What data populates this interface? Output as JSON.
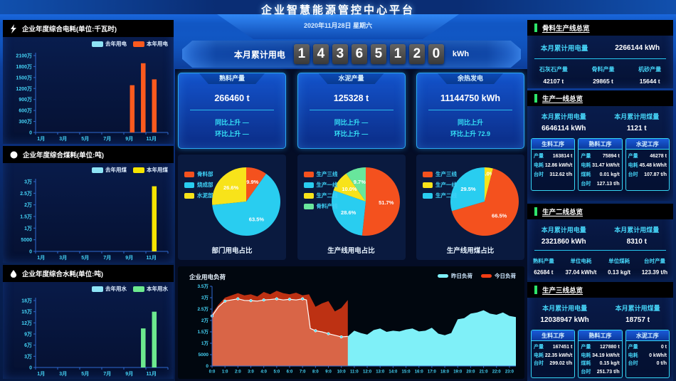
{
  "header": {
    "title": "企业智慧能源管控中心平台",
    "date": "2020年11月28日 星期六"
  },
  "counter": {
    "label": "本月累计用电",
    "digits": [
      "1",
      "4",
      "3",
      "6",
      "5",
      "1",
      "2",
      "0"
    ],
    "unit": "kWh"
  },
  "stat_cards": [
    {
      "title": "熟料产量",
      "value": "266460 t",
      "yoy": "同比上升 —",
      "mom": "环比上升 —"
    },
    {
      "title": "水泥产量",
      "value": "125328 t",
      "yoy": "同比上升 —",
      "mom": "环比上升 —"
    },
    {
      "title": "余热发电",
      "value": "11144750 kWh",
      "yoy": "同比上升",
      "mom": "环比上升 72.9"
    }
  ],
  "right_panels": {
    "aggregate": {
      "title": "骨料生产线总览",
      "total_label": "本月累计用电量",
      "total_value": "2266144 kWh",
      "stats": [
        {
          "label": "石灰石产量",
          "value": "42107 t"
        },
        {
          "label": "骨料产量",
          "value": "29865 t"
        },
        {
          "label": "机砂产量",
          "value": "15644 t"
        }
      ]
    },
    "line1": {
      "title": "生产一线总览",
      "elec_label": "本月累计用电量",
      "elec_value": "6646114 kWh",
      "coal_label": "本月累计用煤量",
      "coal_value": "1121 t",
      "procs": [
        {
          "title": "生料工序",
          "rows": [
            [
              "产量",
              "163814 t"
            ],
            [
              "电耗",
              "12.86 kWh/t"
            ],
            [
              "台时",
              "312.62 t/h"
            ]
          ]
        },
        {
          "title": "熟料工序",
          "rows": [
            [
              "产量",
              "75894 t"
            ],
            [
              "电耗",
              "31.47 kWh/t"
            ],
            [
              "煤耗",
              "0.01 kg/t"
            ],
            [
              "台时",
              "127.13 t/h"
            ]
          ]
        },
        {
          "title": "水泥工序",
          "rows": [
            [
              "产量",
              "46278 t"
            ],
            [
              "电耗",
              "45.48 kWh/t"
            ],
            [
              "台时",
              "107.87 t/h"
            ]
          ]
        }
      ]
    },
    "line2": {
      "title": "生产二线总览",
      "elec_label": "本月累计用电量",
      "elec_value": "2321860 kWh",
      "coal_label": "本月累计用煤量",
      "coal_value": "8310 t",
      "stats": [
        {
          "label": "熟料产量",
          "value": "62684 t"
        },
        {
          "label": "单位电耗",
          "value": "37.04 kWh/t"
        },
        {
          "label": "单位煤耗",
          "value": "0.13 kg/t"
        },
        {
          "label": "台时产量",
          "value": "123.39 t/h"
        }
      ]
    },
    "line3": {
      "title": "生产三线总览",
      "elec_label": "本月累计用电量",
      "elec_value": "12038947 kWh",
      "coal_label": "本月累计用煤量",
      "coal_value": "18757 t",
      "procs": [
        {
          "title": "生料工序",
          "rows": [
            [
              "产量",
              "167451 t"
            ],
            [
              "电耗",
              "22.35 kWh/t"
            ],
            [
              "台时",
              "299.02 t/h"
            ]
          ]
        },
        {
          "title": "熟料工序",
          "rows": [
            [
              "产量",
              "127880 t"
            ],
            [
              "电耗",
              "34.19 kWh/t"
            ],
            [
              "煤耗",
              "0.15 kg/t"
            ],
            [
              "台时",
              "251.73 t/h"
            ]
          ]
        },
        {
          "title": "水泥工序",
          "rows": [
            [
              "产量",
              "0 t"
            ],
            [
              "电耗",
              "0 kWh/t"
            ],
            [
              "台时",
              "0 t/h"
            ]
          ]
        }
      ]
    }
  },
  "chart_data": [
    {
      "id": "elec-year",
      "type": "bar",
      "title": "企业年度综合电耗(单位:千瓦时)",
      "categories": [
        "1月",
        "2月",
        "3月",
        "4月",
        "5月",
        "6月",
        "7月",
        "8月",
        "9月",
        "10月",
        "11月",
        "12月"
      ],
      "yticks": [
        "0",
        "300万",
        "600万",
        "900万",
        "1200万",
        "1500万",
        "1800万",
        "2100万"
      ],
      "ylim": [
        0,
        21000000
      ],
      "legend_position": "top-right",
      "grid": false,
      "series": [
        {
          "name": "去年用电",
          "color": "#8ee3f5",
          "values": [
            0,
            0,
            0,
            0,
            0,
            0,
            0,
            0,
            0,
            0,
            0,
            0
          ]
        },
        {
          "name": "本年用电",
          "color": "#fb5a1e",
          "values": [
            0,
            0,
            0,
            0,
            0,
            0,
            0,
            0,
            12900000,
            18900000,
            14500000,
            0
          ]
        }
      ]
    },
    {
      "id": "coal-year",
      "type": "bar",
      "title": "企业年度综合煤耗(单位:吨)",
      "categories": [
        "1月",
        "2月",
        "3月",
        "4月",
        "5月",
        "6月",
        "7月",
        "8月",
        "9月",
        "10月",
        "11月",
        "12月"
      ],
      "yticks": [
        "0",
        "5000",
        "1万",
        "1.5万",
        "2万",
        "2.5万",
        "3万"
      ],
      "ylim": [
        0,
        30000
      ],
      "legend_position": "top-right",
      "grid": false,
      "series": [
        {
          "name": "去年用煤",
          "color": "#8ee3f5",
          "values": [
            0,
            0,
            0,
            0,
            0,
            0,
            0,
            0,
            0,
            0,
            0,
            0
          ]
        },
        {
          "name": "本年用煤",
          "color": "#f6e400",
          "values": [
            0,
            0,
            0,
            0,
            0,
            0,
            0,
            0,
            0,
            0,
            28000,
            0
          ]
        }
      ]
    },
    {
      "id": "water-year",
      "type": "bar",
      "title": "企业年度综合水耗(单位:吨)",
      "categories": [
        "1月",
        "2月",
        "3月",
        "4月",
        "5月",
        "6月",
        "7月",
        "8月",
        "9月",
        "10月",
        "11月",
        "12月"
      ],
      "yticks": [
        "0",
        "3万",
        "6万",
        "9万",
        "12万",
        "15万",
        "18万"
      ],
      "ylim": [
        0,
        180000
      ],
      "legend_position": "top-right",
      "grid": false,
      "series": [
        {
          "name": "去年用水",
          "color": "#8ee3f5",
          "values": [
            0,
            0,
            0,
            0,
            0,
            0,
            0,
            0,
            0,
            0,
            0,
            0
          ]
        },
        {
          "name": "本年用水",
          "color": "#6ce98e",
          "values": [
            0,
            0,
            0,
            0,
            0,
            0,
            0,
            0,
            0,
            105000,
            150000,
            0
          ]
        }
      ]
    },
    {
      "id": "pie-dept",
      "type": "pie",
      "title": "部门用电占比",
      "legend_position": "top-left",
      "legend": [
        {
          "label": "骨料部",
          "color": "#f4511e"
        },
        {
          "label": "烧成部",
          "color": "#29cdf0"
        },
        {
          "label": "水泥部",
          "color": "#f8e31a"
        }
      ],
      "slices": [
        {
          "label": "骨料部",
          "value": 9.9,
          "pct": "9.9%",
          "color": "#f4511e"
        },
        {
          "label": "烧成部",
          "value": 63.5,
          "pct": "63.5%",
          "color": "#29cdf0"
        },
        {
          "label": "水泥部",
          "value": 26.6,
          "pct": "26.6%",
          "color": "#f8e31a"
        }
      ]
    },
    {
      "id": "pie-line-elec",
      "type": "pie",
      "title": "生产线用电占比",
      "legend_position": "top-left",
      "legend": [
        {
          "label": "生产三线",
          "color": "#f4511e"
        },
        {
          "label": "生产一线",
          "color": "#29cdf0"
        },
        {
          "label": "生产二线",
          "color": "#f8e31a"
        },
        {
          "label": "骨料产线",
          "color": "#68e69c"
        }
      ],
      "slices": [
        {
          "label": "生产三线",
          "value": 51.7,
          "pct": "51.7%",
          "color": "#f4511e"
        },
        {
          "label": "生产一线",
          "value": 28.6,
          "pct": "28.6%",
          "color": "#29cdf0"
        },
        {
          "label": "生产二线",
          "value": 10.0,
          "pct": "10.0%",
          "color": "#f8e31a"
        },
        {
          "label": "骨料产线",
          "value": 9.7,
          "pct": "9.7%",
          "color": "#68e69c"
        }
      ]
    },
    {
      "id": "pie-line-coal",
      "type": "pie",
      "title": "生产线用煤占比",
      "legend_position": "top-left",
      "legend": [
        {
          "label": "生产三线",
          "color": "#f4511e"
        },
        {
          "label": "生产一线",
          "color": "#f8e31a"
        },
        {
          "label": "生产二线",
          "color": "#29cdf0"
        }
      ],
      "slices": [
        {
          "label": "生产一线",
          "value": 4.0,
          "pct": "4.0%",
          "color": "#f8e31a"
        },
        {
          "label": "生产三线",
          "value": 66.5,
          "pct": "66.5%",
          "color": "#f4511e"
        },
        {
          "label": "生产二线",
          "value": 29.5,
          "pct": "29.5%",
          "color": "#29cdf0"
        }
      ]
    },
    {
      "id": "load",
      "type": "area",
      "title": "企业用电负荷",
      "legend_position": "top-right",
      "yticks": [
        "0",
        "5000",
        "1万",
        "1.5万",
        "2万",
        "2.5万",
        "3万",
        "3.5万"
      ],
      "ymax": 35000,
      "grid": false,
      "x_labels": [
        "0:0",
        "1:0",
        "2:0",
        "3:0",
        "4:0",
        "5:0",
        "6:0",
        "7:0",
        "8:0",
        "9:0",
        "10:0",
        "11:0",
        "12:0",
        "13:0",
        "14:0",
        "15:0",
        "16:0",
        "17:0",
        "18:0",
        "19:0",
        "20:0",
        "21:0",
        "22:0",
        "23:0"
      ],
      "legend": [
        {
          "label": "昨日负荷",
          "color": "#7ff0f8"
        },
        {
          "label": "今日负荷",
          "color": "#f23d14"
        }
      ],
      "series": [
        {
          "name": "昨日负荷",
          "color": "#7ff0f8",
          "opacity": 1,
          "line_until": 10.5,
          "points": [
            [
              0,
              22000
            ],
            [
              0.5,
              26000
            ],
            [
              1,
              28500
            ],
            [
              1.5,
              29000
            ],
            [
              2,
              29500
            ],
            [
              2.5,
              28800
            ],
            [
              3,
              28700
            ],
            [
              3.5,
              28500
            ],
            [
              4,
              29000
            ],
            [
              4.5,
              29200
            ],
            [
              5,
              29500
            ],
            [
              5.5,
              29000
            ],
            [
              6,
              29300
            ],
            [
              6.5,
              29000
            ],
            [
              7,
              29500
            ],
            [
              7.3,
              29000
            ],
            [
              7.6,
              16500
            ],
            [
              8,
              15500
            ],
            [
              8.5,
              15000
            ],
            [
              9,
              14200
            ],
            [
              9.5,
              13500
            ],
            [
              10,
              12800
            ],
            [
              10.5,
              13000
            ],
            [
              11,
              15500
            ],
            [
              11.5,
              14500
            ],
            [
              12,
              13800
            ],
            [
              12.5,
              15800
            ],
            [
              13,
              16500
            ],
            [
              13.5,
              15000
            ],
            [
              14,
              15500
            ],
            [
              14.5,
              15200
            ],
            [
              15,
              16000
            ],
            [
              15.5,
              16500
            ],
            [
              16,
              15200
            ],
            [
              16.5,
              15500
            ],
            [
              17,
              16800
            ],
            [
              17.5,
              14200
            ],
            [
              18,
              13500
            ],
            [
              18.5,
              14500
            ],
            [
              19,
              20500
            ],
            [
              19.5,
              21000
            ],
            [
              20,
              23000
            ],
            [
              20.5,
              23500
            ],
            [
              21,
              24500
            ],
            [
              21.5,
              23000
            ],
            [
              22,
              22500
            ],
            [
              22.5,
              23500
            ],
            [
              23,
              22000
            ],
            [
              23.5,
              21500
            ]
          ]
        },
        {
          "name": "今日负荷",
          "color": "#f23d14",
          "opacity": 0.78,
          "points": [
            [
              0,
              23000
            ],
            [
              0.5,
              27000
            ],
            [
              1,
              30000
            ],
            [
              1.5,
              31000
            ],
            [
              2,
              32000
            ],
            [
              2.5,
              31000
            ],
            [
              3,
              31500
            ],
            [
              3.5,
              30500
            ],
            [
              4,
              32500
            ],
            [
              4.5,
              31500
            ],
            [
              5,
              33000
            ],
            [
              5.5,
              32000
            ],
            [
              6,
              31500
            ],
            [
              6.5,
              32200
            ],
            [
              7,
              31000
            ],
            [
              7.5,
              31500
            ],
            [
              8,
              26000
            ],
            [
              8.5,
              27500
            ],
            [
              9,
              28500
            ],
            [
              9.5,
              24000
            ],
            [
              10,
              25500
            ],
            [
              10.5,
              29000
            ]
          ]
        }
      ]
    }
  ],
  "colors": {
    "accent_cyan": "#35d6f5",
    "text_cyan": "#45d4f7",
    "axis_blue": "#2f6ad0",
    "orange": "#fb5a1e",
    "yellow": "#f6e400",
    "green": "#6ce98e",
    "marker_green": "#2ee56a"
  }
}
